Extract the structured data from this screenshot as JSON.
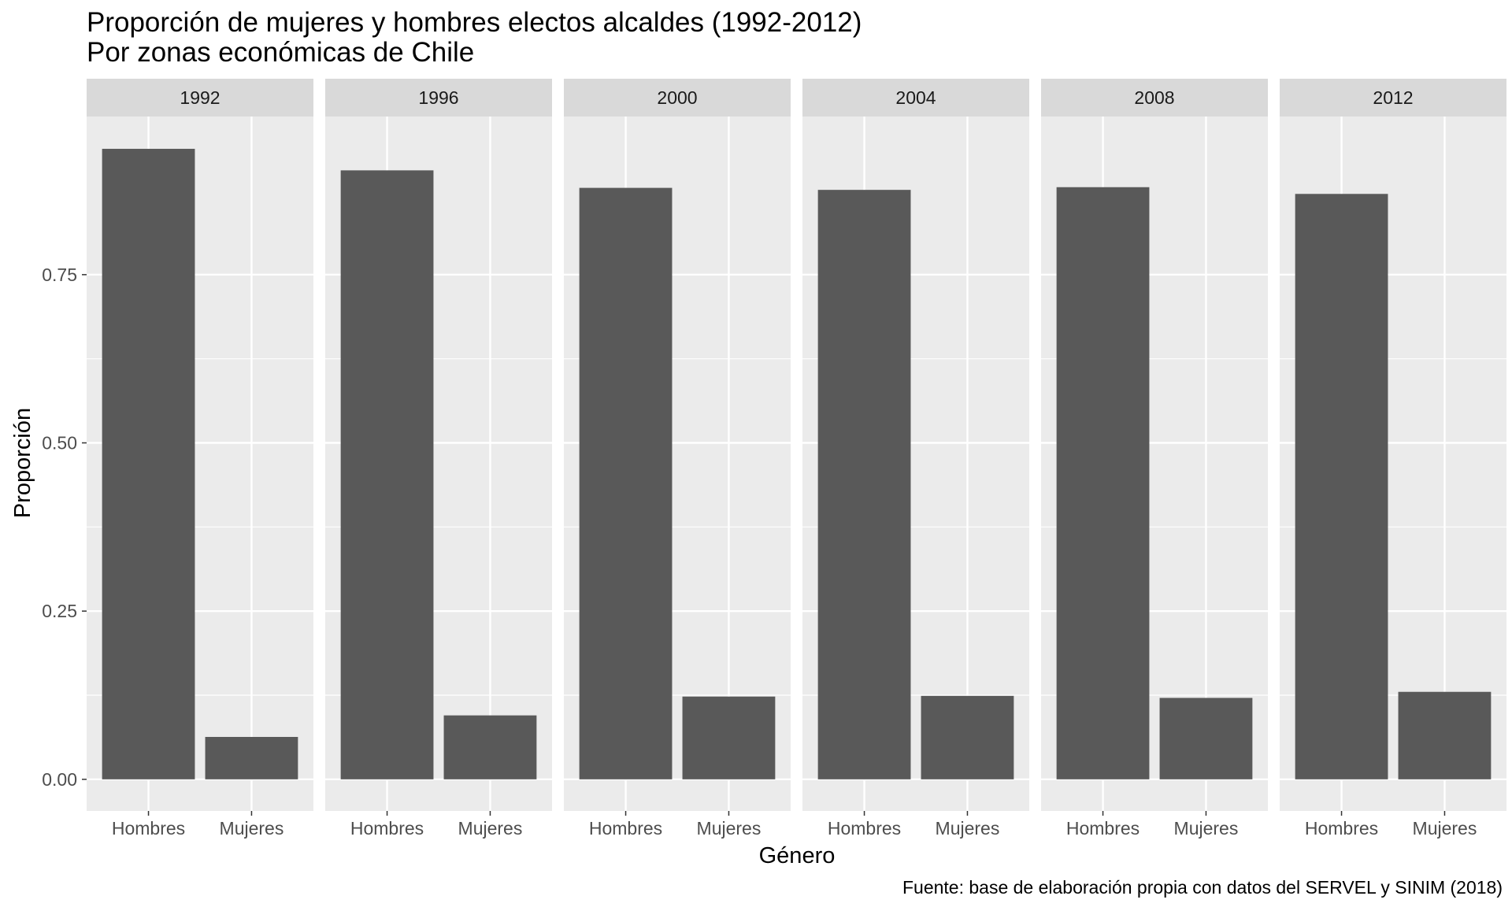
{
  "chart_data": {
    "type": "bar",
    "title": "Proporción de mujeres y hombres electos alcaldes (1992-2012)",
    "subtitle": "Por zonas económicas de Chile",
    "xlabel": "Género",
    "ylabel": "Proporción",
    "caption": "Fuente: base de elaboración propia con datos del SERVEL y SINIM (2018)",
    "categories": [
      "Hombres",
      "Mujeres"
    ],
    "yticks": [
      0.0,
      0.25,
      0.5,
      0.75
    ],
    "ytick_labels": [
      "0.00",
      "0.25",
      "0.50",
      "0.75"
    ],
    "ylim": [
      -0.047,
      0.985
    ],
    "grid": true,
    "bar_color": "#595959",
    "panel_background": "#ebebeb",
    "strip_background": "#d9d9d9",
    "facets": [
      {
        "label": "1992",
        "values": [
          0.937,
          0.063
        ]
      },
      {
        "label": "1996",
        "values": [
          0.905,
          0.095
        ]
      },
      {
        "label": "2000",
        "values": [
          0.879,
          0.123
        ]
      },
      {
        "label": "2004",
        "values": [
          0.876,
          0.124
        ]
      },
      {
        "label": "2008",
        "values": [
          0.88,
          0.121
        ]
      },
      {
        "label": "2012",
        "values": [
          0.87,
          0.13
        ]
      }
    ]
  }
}
